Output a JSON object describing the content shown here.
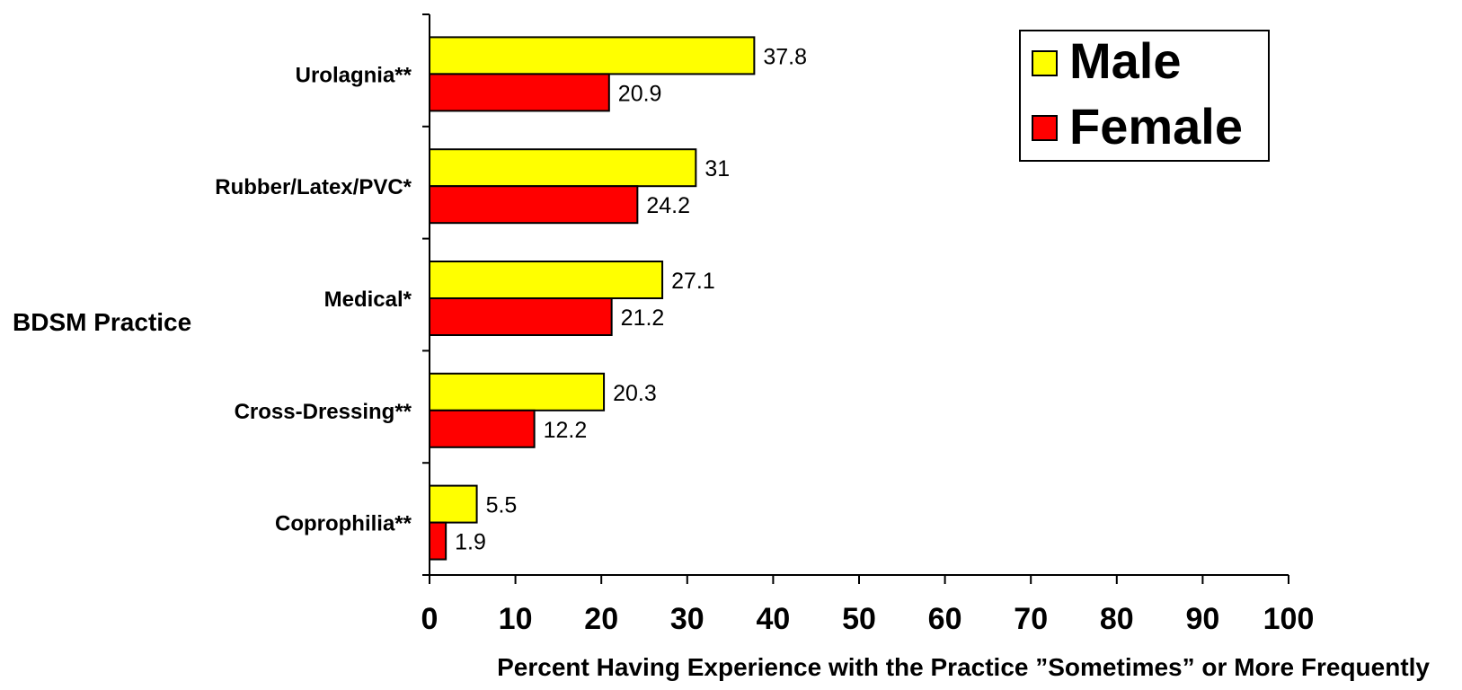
{
  "chart_data": {
    "type": "bar",
    "orientation": "horizontal",
    "categories": [
      "Urolagnia**",
      "Rubber/Latex/PVC*",
      "Medical*",
      "Cross-Dressing**",
      "Coprophilia**"
    ],
    "series": [
      {
        "name": "Male",
        "values": [
          37.8,
          31,
          27.1,
          20.3,
          5.5
        ],
        "color": "#ffff00"
      },
      {
        "name": "Female",
        "values": [
          20.9,
          24.2,
          21.2,
          12.2,
          1.9
        ],
        "color": "#ff0000"
      }
    ],
    "value_labels": [
      [
        "37.8",
        "31",
        "27.1",
        "20.3",
        "5.5"
      ],
      [
        "20.9",
        "24.2",
        "21.2",
        "12.2",
        "1.9"
      ]
    ],
    "xlabel": "Percent Having Experience with the Practice ”Sometimes” or More Frequently",
    "ylabel": "BDSM Practice",
    "xlim": [
      0,
      100
    ],
    "xticks": [
      "0",
      "10",
      "20",
      "30",
      "40",
      "50",
      "60",
      "70",
      "80",
      "90",
      "100"
    ],
    "grid": false,
    "legend_position": "top-right"
  }
}
